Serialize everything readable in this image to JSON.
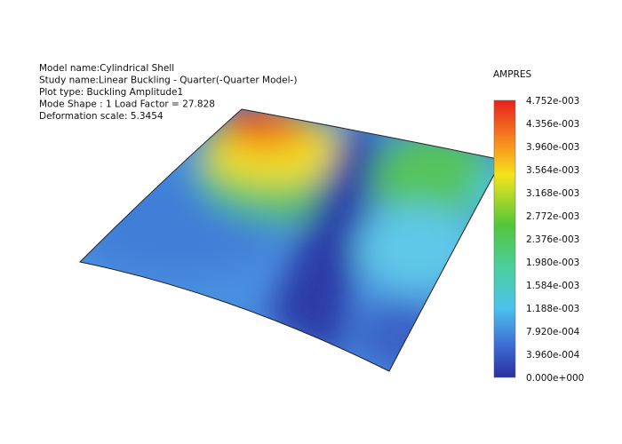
{
  "info": [
    "Model name:Cylindrical Shell",
    "Study name:Linear Buckling - Quarter(-Quarter Model-)",
    "Plot type: Buckling Amplitude1",
    "Mode Shape : 1  Load Factor = 27.828",
    "Deformation scale: 5.3454"
  ],
  "legend": {
    "title": "AMPRES",
    "labels": [
      "4.752e-003",
      "4.356e-003",
      "3.960e-003",
      "3.564e-003",
      "3.168e-003",
      "2.772e-003",
      "2.376e-003",
      "1.980e-003",
      "1.584e-003",
      "1.188e-003",
      "7.920e-004",
      "3.960e-004",
      "0.000e+000"
    ]
  }
}
